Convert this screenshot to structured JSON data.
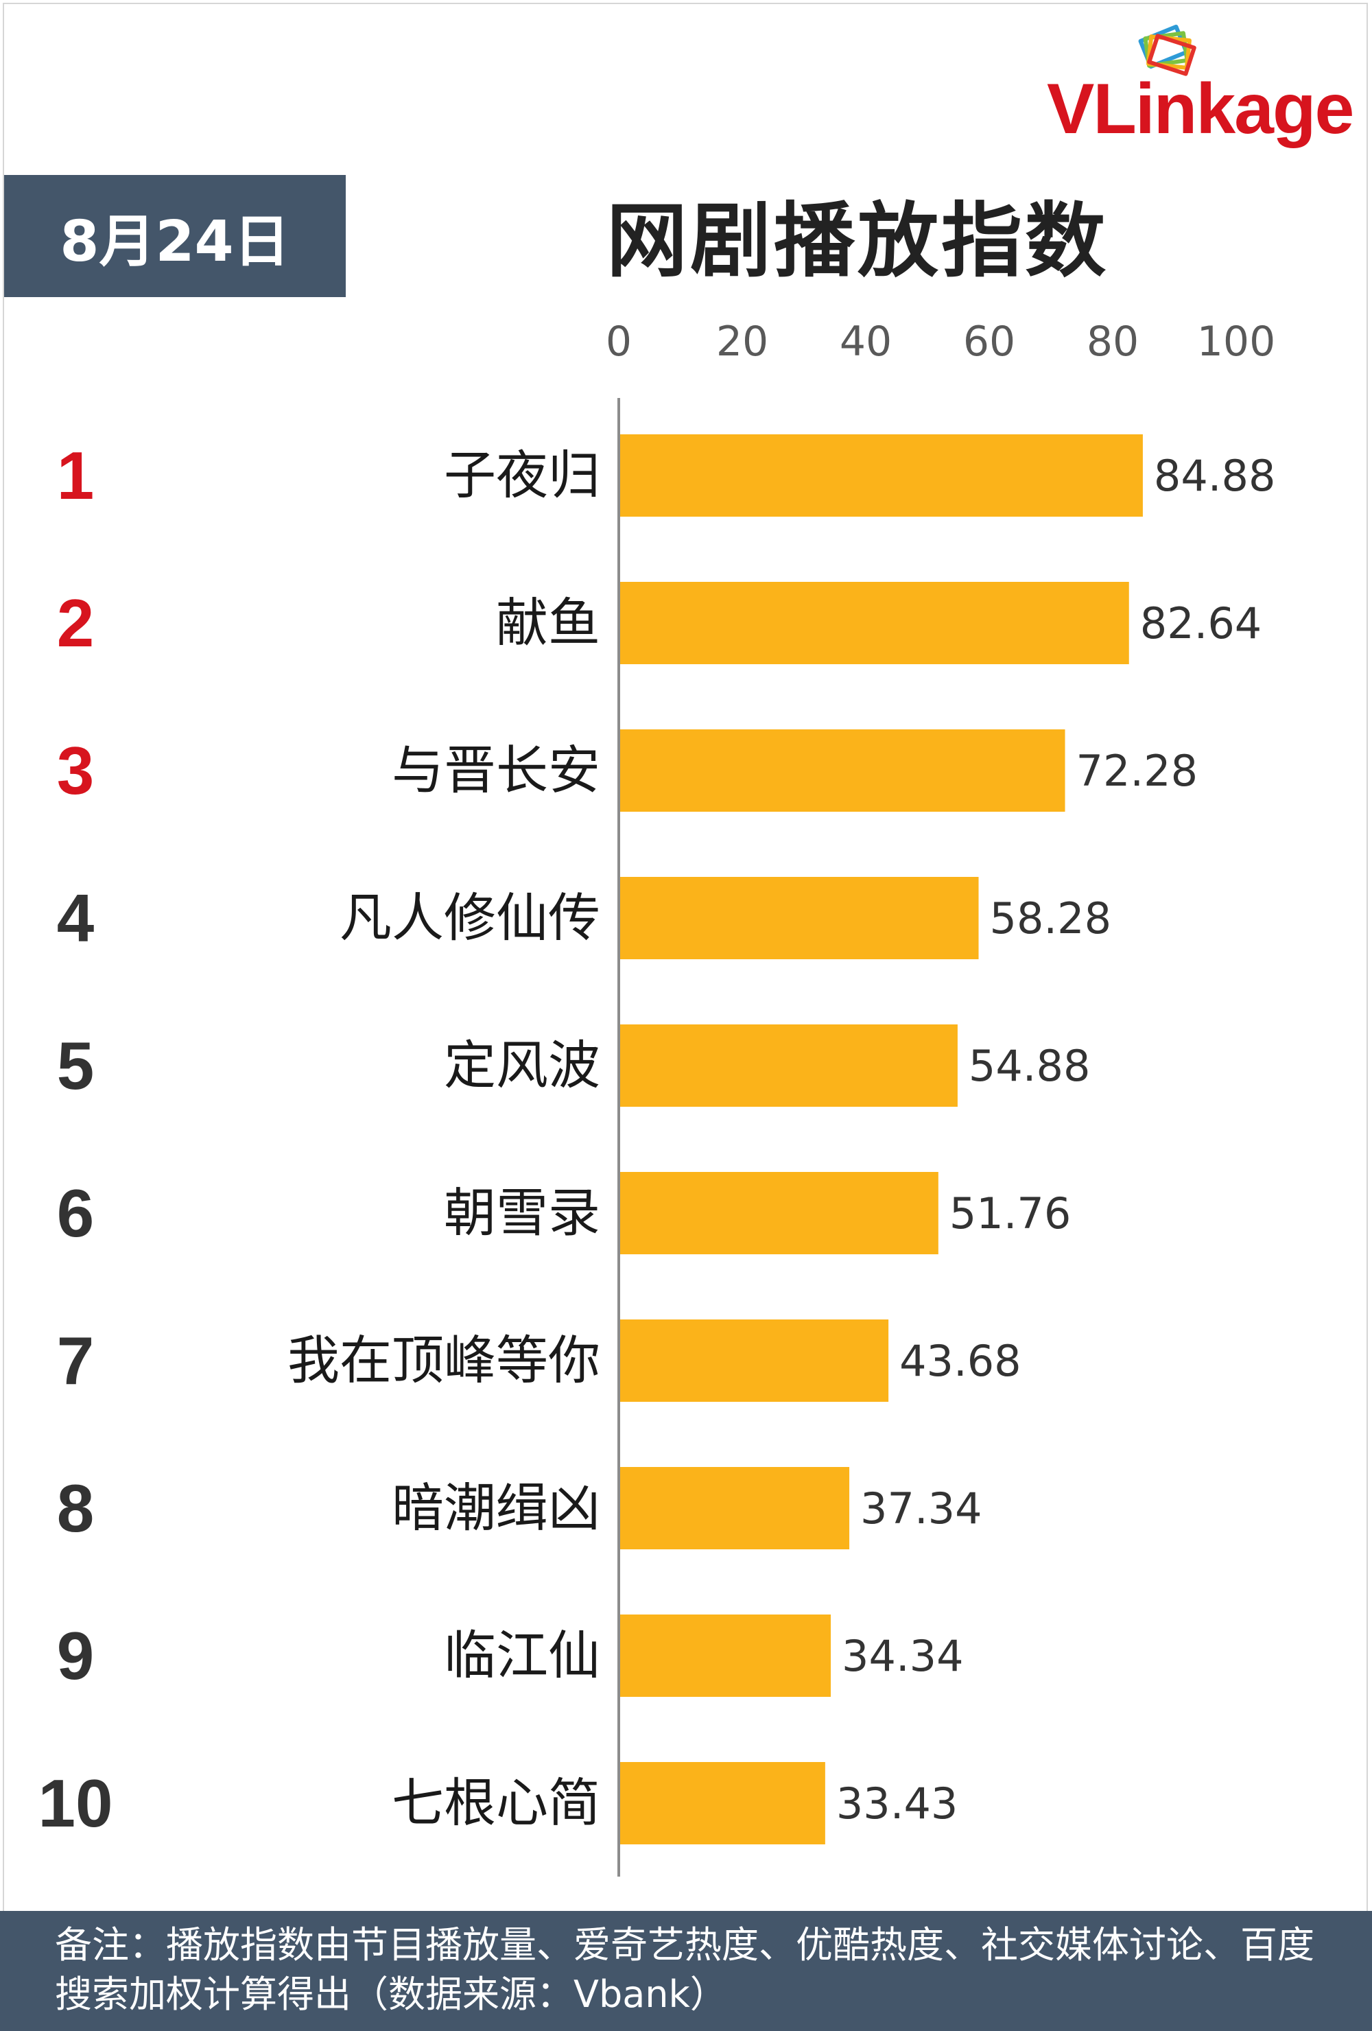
{
  "header": {
    "date_label": "8月24日",
    "brand": "VLinkage"
  },
  "chart_data": {
    "type": "bar",
    "orientation": "horizontal",
    "title": "网剧播放指数",
    "xlim": [
      0,
      100
    ],
    "x_ticks": [
      "0",
      "20",
      "40",
      "60",
      "80",
      "100"
    ],
    "grid": false,
    "bar_color": "#FBB31A",
    "rank_highlight_color": "#D7141E",
    "rank_color": "#333333",
    "ranks": [
      "1",
      "2",
      "3",
      "4",
      "5",
      "6",
      "7",
      "8",
      "9",
      "10"
    ],
    "categories": [
      "子夜归",
      "献鱼",
      "与晋长安",
      "凡人修仙传",
      "定风波",
      "朝雪录",
      "我在顶峰等你",
      "暗潮缉凶",
      "临江仙",
      "七根心简"
    ],
    "values": [
      84.88,
      82.64,
      72.28,
      58.28,
      54.88,
      51.76,
      43.68,
      37.34,
      34.34,
      33.43
    ],
    "value_labels": [
      "84.88",
      "82.64",
      "72.28",
      "58.28",
      "54.88",
      "51.76",
      "43.68",
      "37.34",
      "34.34",
      "33.43"
    ]
  },
  "footer": {
    "note": "备注：播放指数由节目播放量、爱奇艺热度、优酷热度、社交媒体讨论、百度搜索加权计算得出（数据来源：Vbank）"
  }
}
